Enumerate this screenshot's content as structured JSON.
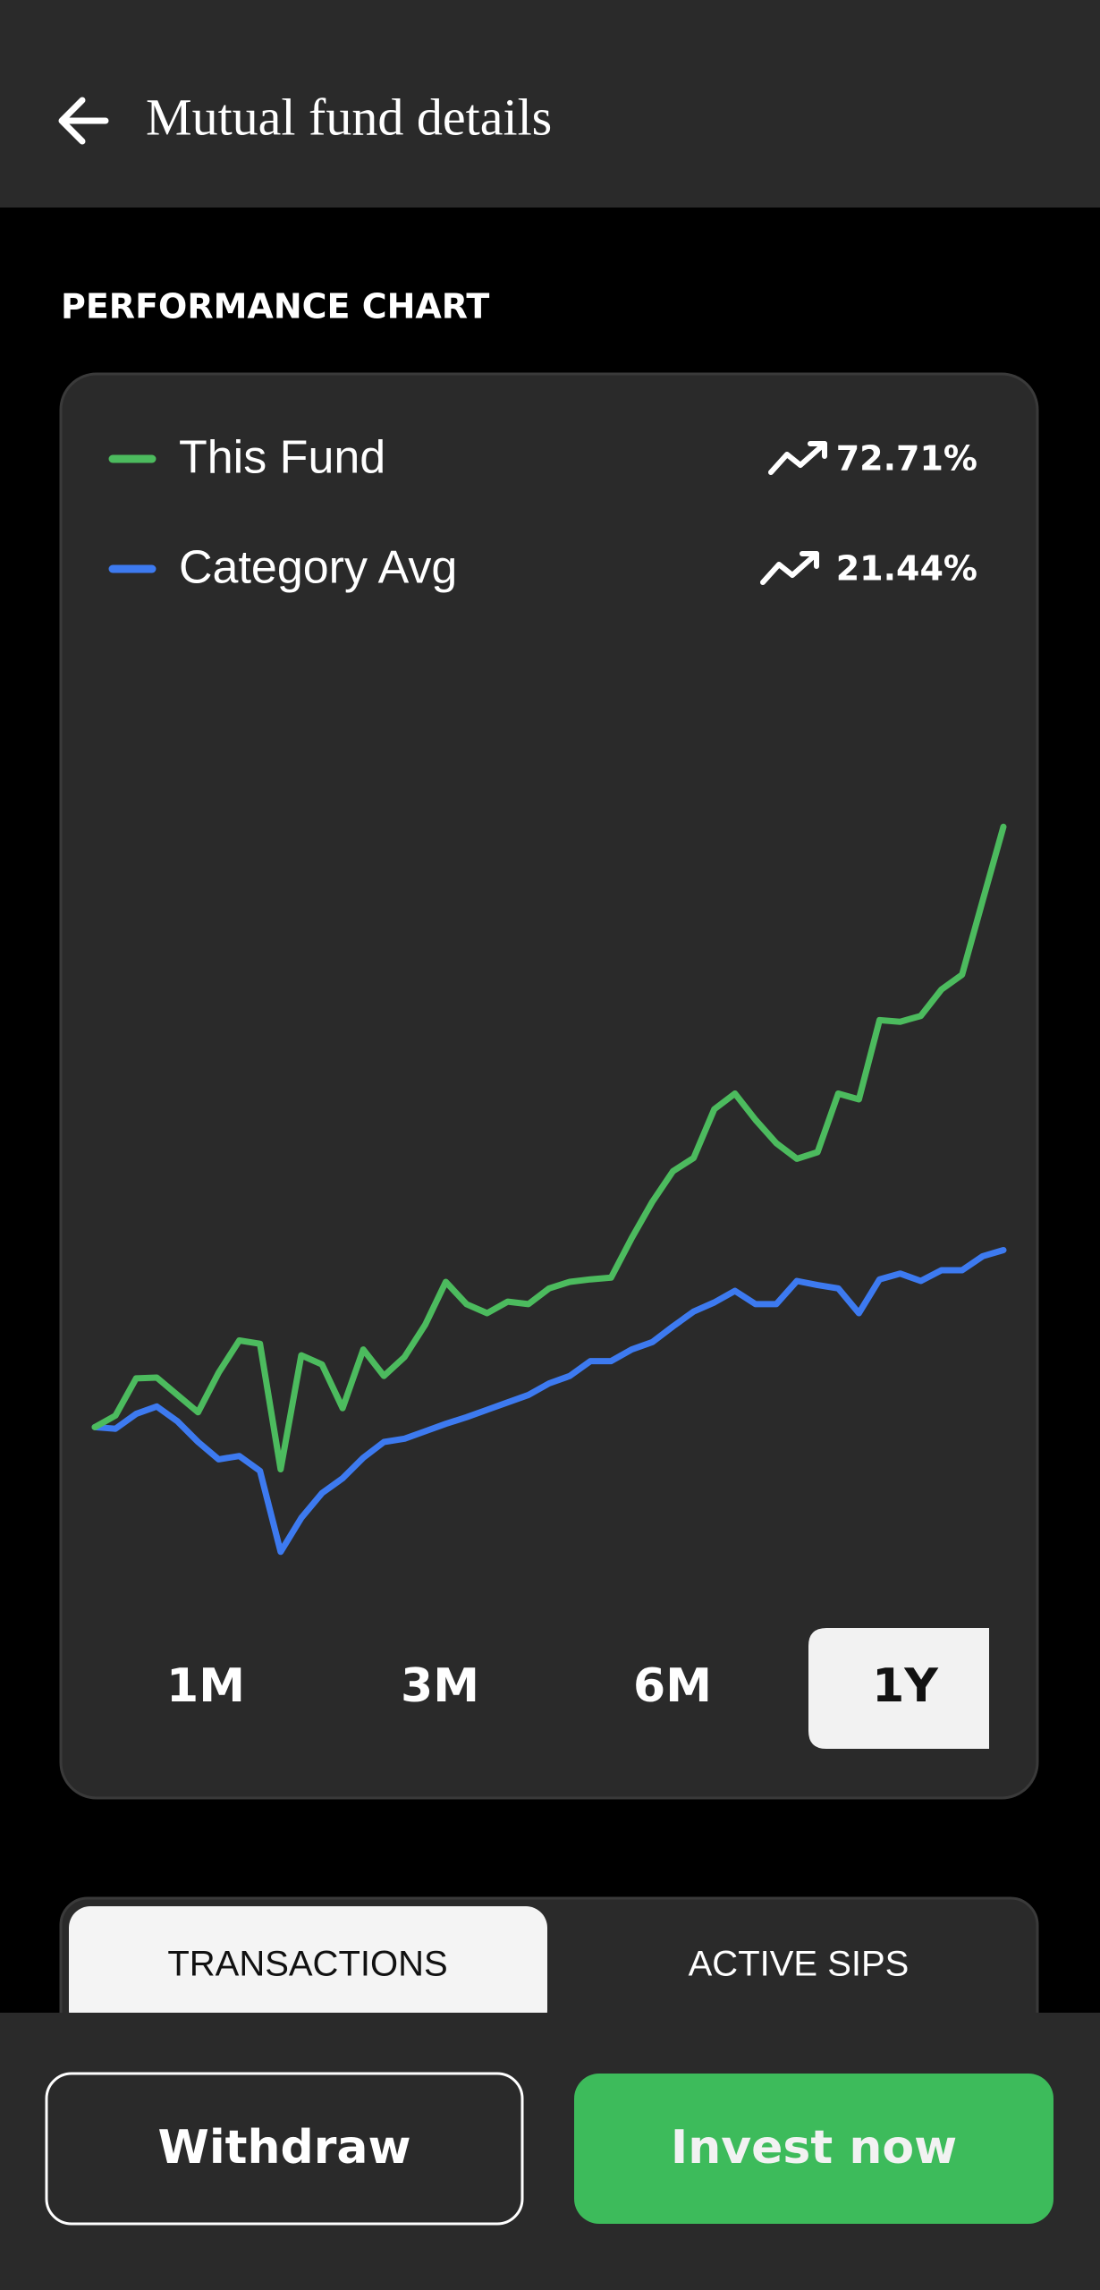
{
  "header": {
    "title": "Mutual fund details"
  },
  "section_title": "PERFORMANCE CHART",
  "chart_data": {
    "type": "line",
    "ylim": [
      -20,
      80
    ],
    "series": [
      {
        "name": "This Fund",
        "color": "#4cbb5e",
        "change": 72.71,
        "change_label": "72.71%",
        "values": [
          0,
          1.4,
          5.9,
          6.0,
          3.9,
          1.8,
          6.6,
          10.5,
          10.1,
          -5.1,
          8.7,
          7.6,
          2.3,
          9.4,
          6.2,
          8.5,
          12.4,
          17.6,
          14.9,
          13.8,
          15.2,
          14.9,
          16.8,
          17.6,
          17.9,
          18.1,
          22.9,
          27.3,
          31.0,
          32.6,
          38.5,
          40.4,
          37.2,
          34.4,
          32.5,
          33.3,
          40.4,
          39.7,
          49.3,
          49.1,
          49.8,
          53.0,
          54.8,
          63.8,
          72.71
        ]
      },
      {
        "name": "Category Avg",
        "color": "#3d7af0",
        "change": 21.44,
        "change_label": "21.44%",
        "values": [
          0,
          -0.2,
          1.6,
          2.5,
          0.7,
          -1.8,
          -3.9,
          -3.5,
          -5.3,
          -15.1,
          -11.0,
          -8.0,
          -6.2,
          -3.7,
          -1.8,
          -1.4,
          -0.5,
          0.4,
          1.2,
          2.1,
          3.0,
          3.9,
          5.3,
          6.2,
          8.0,
          8.0,
          9.4,
          10.3,
          12.2,
          14.0,
          15.1,
          16.5,
          14.9,
          14.9,
          17.7,
          17.2,
          16.8,
          13.8,
          17.9,
          18.6,
          17.7,
          19.0,
          19.0,
          20.7,
          21.44
        ]
      }
    ]
  },
  "periods": [
    "1M",
    "3M",
    "6M",
    "1Y"
  ],
  "selected_period_index": 3,
  "tabs": [
    "TRANSACTIONS",
    "ACTIVE SIPS"
  ],
  "selected_tab_index": 0,
  "buttons": {
    "withdraw": "Withdraw",
    "invest": "Invest now"
  }
}
